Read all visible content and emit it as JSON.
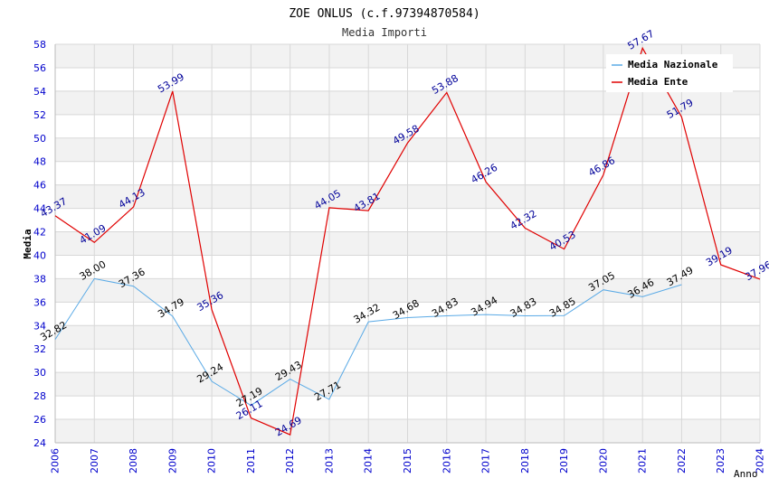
{
  "chart_data": {
    "type": "line",
    "title": "ZOE ONLUS (c.f.97394870584)",
    "subtitle": "Media Importi",
    "xlabel": "Anno",
    "ylabel": "Media",
    "xlim": [
      2006,
      2024
    ],
    "ylim": [
      24,
      58
    ],
    "y_ticks": [
      "24",
      "26",
      "28",
      "30",
      "32",
      "34",
      "36",
      "38",
      "40",
      "42",
      "44",
      "46",
      "48",
      "50",
      "52",
      "54",
      "56",
      "58"
    ],
    "x_ticks": [
      "2006",
      "2007",
      "2008",
      "2009",
      "2010",
      "2011",
      "2012",
      "2013",
      "2014",
      "2015",
      "2016",
      "2017",
      "2018",
      "2019",
      "2020",
      "2021",
      "2022",
      "2023",
      "2024"
    ],
    "legend_position": "top-right",
    "series": [
      {
        "name": "Media Nazionale",
        "color": "#5aaae6",
        "label_color": "#000000",
        "x": [
          2006,
          2007,
          2008,
          2009,
          2010,
          2011,
          2012,
          2013,
          2014,
          2015,
          2016,
          2017,
          2018,
          2019,
          2020,
          2021,
          2022
        ],
        "values": [
          32.82,
          38.0,
          37.36,
          34.79,
          29.24,
          27.19,
          29.43,
          27.71,
          34.32,
          34.68,
          34.83,
          34.94,
          34.83,
          34.85,
          37.05,
          36.46,
          37.49
        ],
        "labels": [
          "32.82",
          "38.00",
          "37.36",
          "34.79",
          "29.24",
          "27.19",
          "29.43",
          "27.71",
          "34.32",
          "34.68",
          "34.83",
          "34.94",
          "34.83",
          "34.85",
          "37.05",
          "36.46",
          "37.49"
        ]
      },
      {
        "name": "Media Ente",
        "color": "#e00000",
        "label_color": "#000099",
        "x": [
          2006,
          2007,
          2008,
          2009,
          2010,
          2011,
          2012,
          2013,
          2014,
          2015,
          2016,
          2017,
          2018,
          2019,
          2020,
          2021,
          2022,
          2023,
          2024
        ],
        "values": [
          43.37,
          41.09,
          44.13,
          53.99,
          35.36,
          26.11,
          24.69,
          44.05,
          43.81,
          49.58,
          53.88,
          46.26,
          42.32,
          40.53,
          46.86,
          57.67,
          51.79,
          39.19,
          37.96
        ],
        "labels": [
          "43.37",
          "41.09",
          "44.13",
          "53.99",
          "35.36",
          "26.11",
          "24.69",
          "44.05",
          "43.81",
          "49.58",
          "53.88",
          "46.26",
          "42.32",
          "40.53",
          "46.86",
          "57.67",
          "51.79",
          "39.19",
          "37.96"
        ]
      }
    ]
  }
}
